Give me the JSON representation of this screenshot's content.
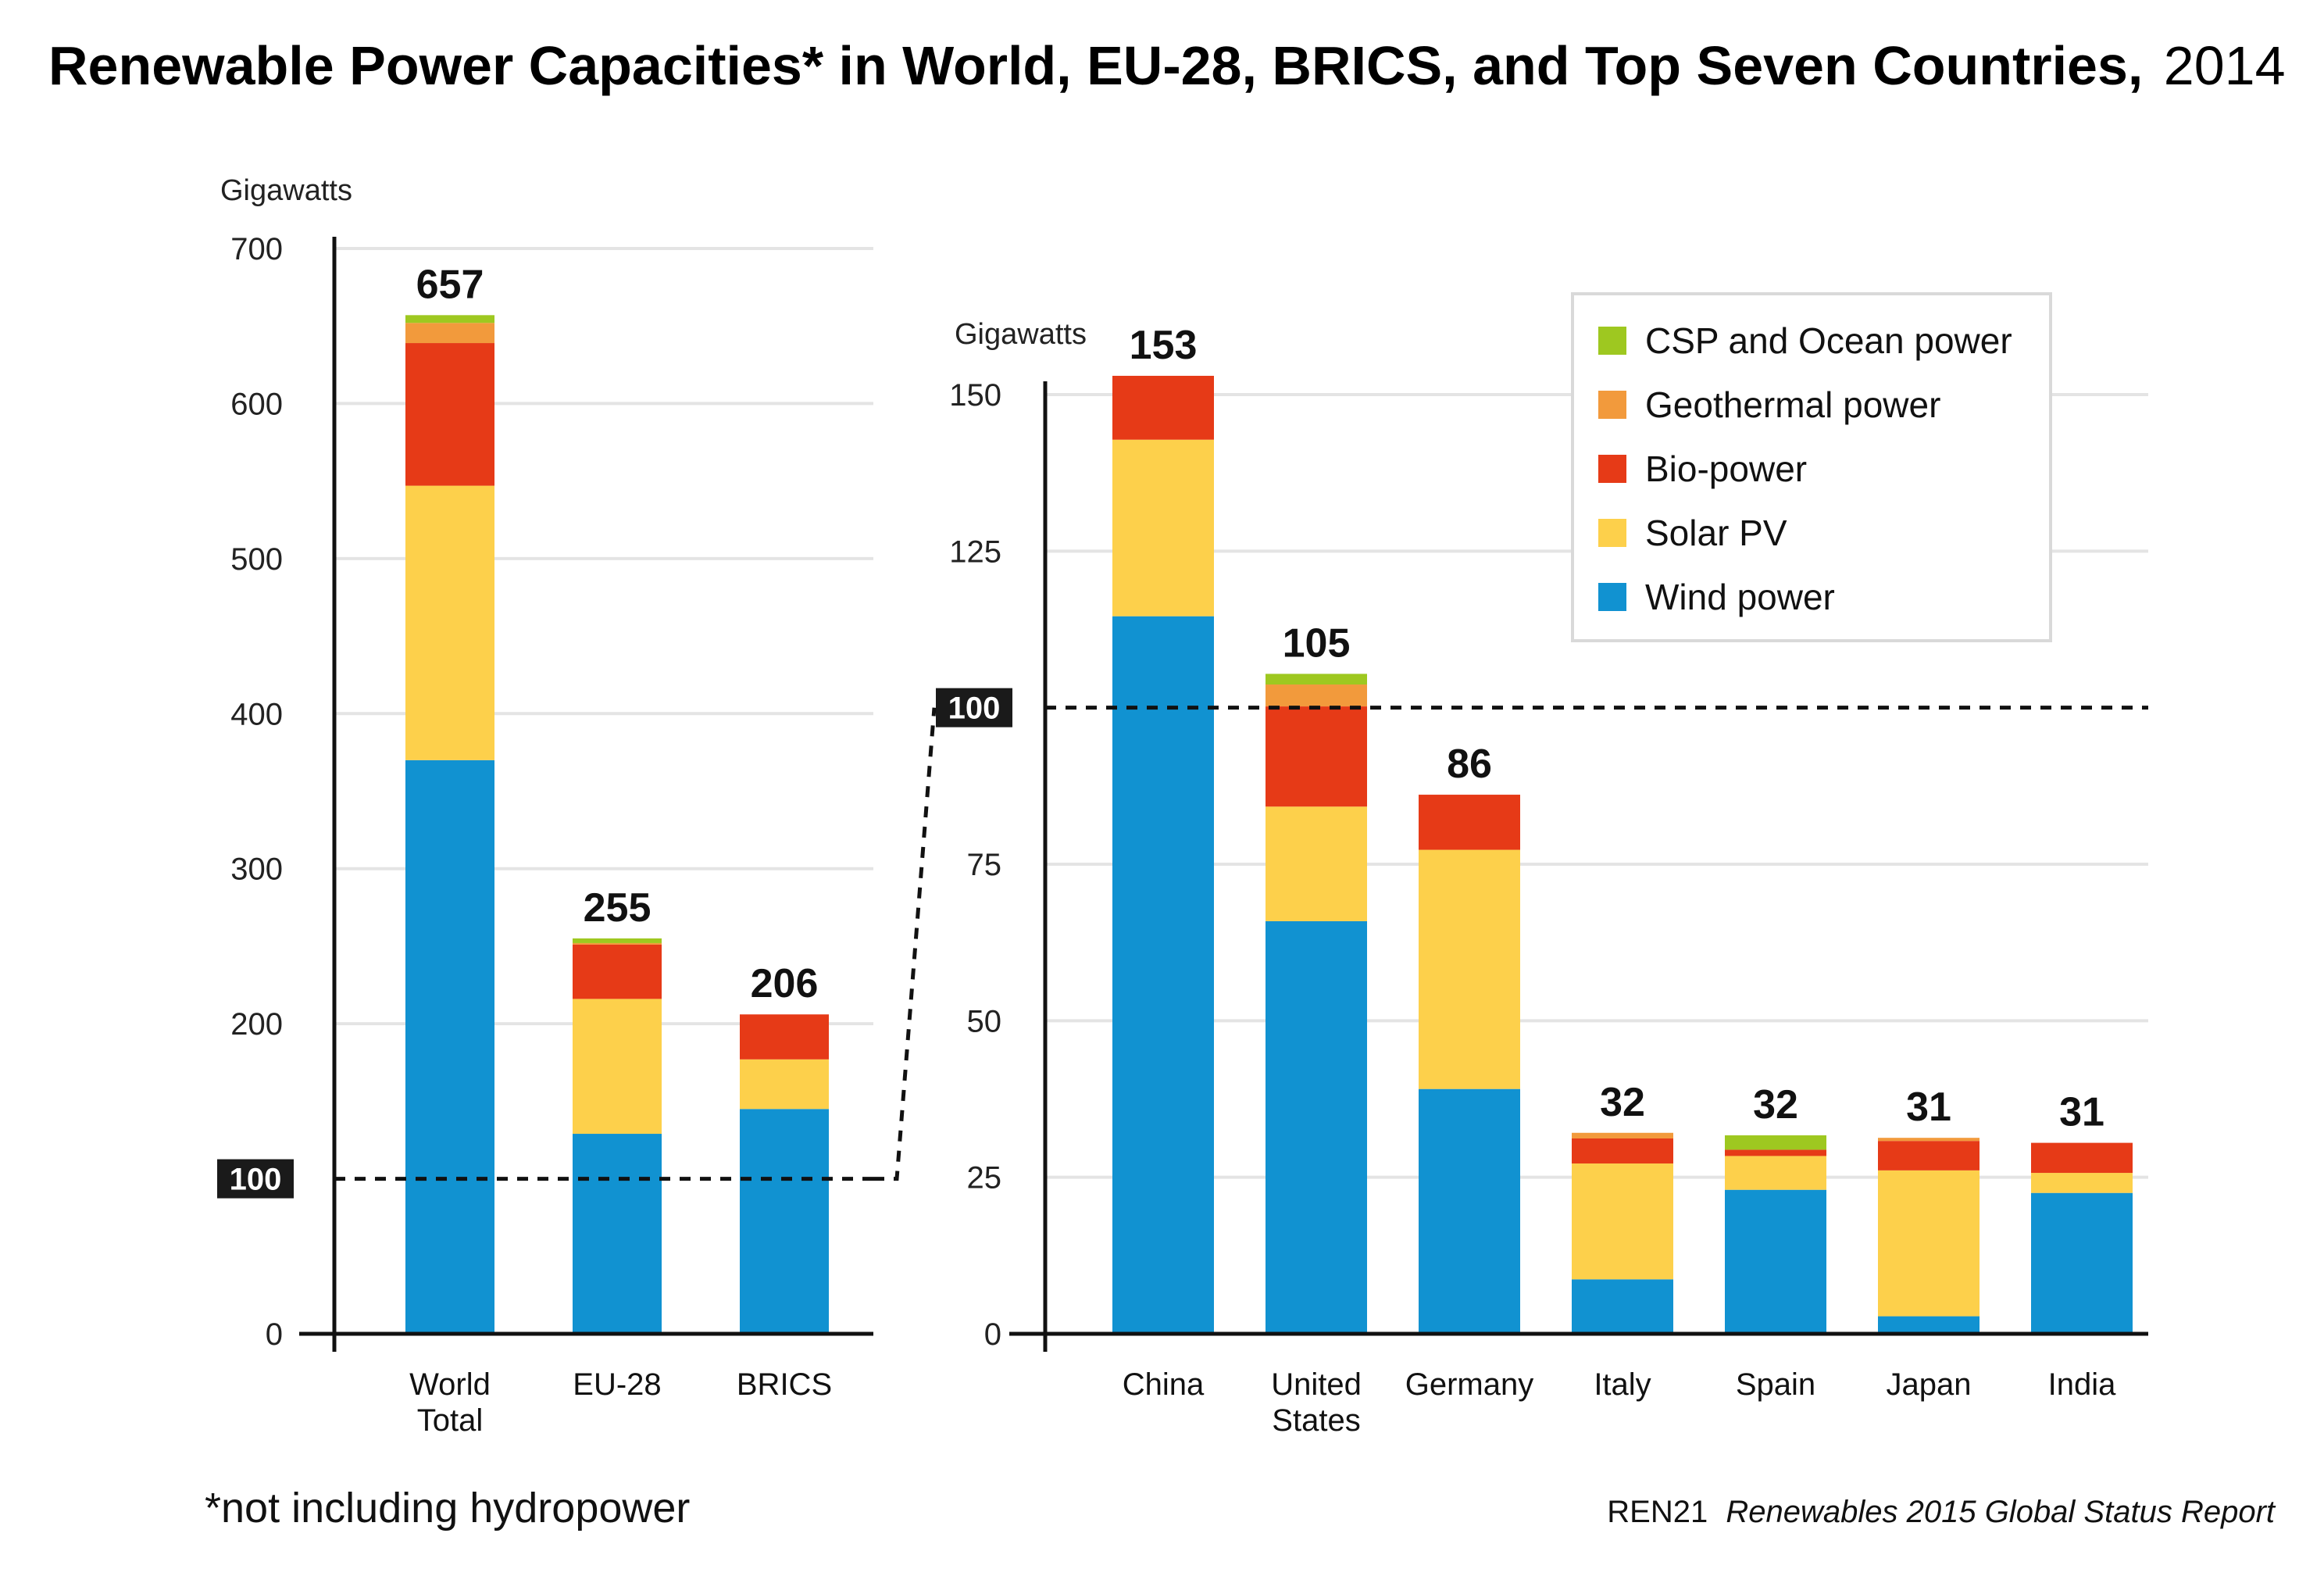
{
  "title": {
    "main": "Renewable Power Capacities* in World, EU-28, BRICS, and Top Seven Countries,",
    "year": "2014"
  },
  "footnote": "*not including hydropower",
  "source": {
    "org": "REN21",
    "report": "Renewables 2015 Global Status Report"
  },
  "colors": {
    "wind": "#1192d1",
    "solar": "#fdd04b",
    "bio": "#e63a17",
    "geo": "#f29a3c",
    "csp": "#9ec820",
    "axis": "#111111",
    "grid": "#e4e4e4",
    "marker_bg": "#1a1a1a"
  },
  "chart_data": [
    {
      "type": "bar",
      "stacked": true,
      "ylabel": "Gigawatts",
      "ylim": [
        0,
        700
      ],
      "yticks": [
        0,
        100,
        200,
        300,
        400,
        500,
        600,
        700
      ],
      "grid": true,
      "reference_line": {
        "value": 100,
        "label": "100",
        "style": "dashed"
      },
      "categories": [
        {
          "id": "world",
          "lines": [
            "World",
            "Total"
          ]
        },
        {
          "id": "eu",
          "lines": [
            "EU-28"
          ]
        },
        {
          "id": "brics",
          "lines": [
            "BRICS"
          ]
        }
      ],
      "totals": [
        "657",
        "255",
        "206"
      ],
      "series": [
        {
          "name": "Wind power",
          "key": "wind",
          "values": [
            370,
            129,
            145
          ]
        },
        {
          "name": "Solar PV",
          "key": "solar",
          "values": [
            177,
            87,
            32
          ]
        },
        {
          "name": "Bio-power",
          "key": "bio",
          "values": [
            92,
            35,
            29
          ]
        },
        {
          "name": "Geothermal power",
          "key": "geo",
          "values": [
            13,
            1,
            0
          ]
        },
        {
          "name": "CSP and Ocean power",
          "key": "csp",
          "values": [
            5,
            3,
            0
          ]
        }
      ]
    },
    {
      "type": "bar",
      "stacked": true,
      "ylabel": "Gigawatts",
      "ylim": [
        0,
        150
      ],
      "yticks": [
        0,
        25,
        50,
        75,
        100,
        125,
        150
      ],
      "grid": true,
      "reference_line": {
        "value": 100,
        "label": "100",
        "style": "dashed"
      },
      "legend_position": "top-right",
      "categories": [
        {
          "id": "china",
          "lines": [
            "China"
          ]
        },
        {
          "id": "us",
          "lines": [
            "United",
            "States"
          ]
        },
        {
          "id": "germany",
          "lines": [
            "Germany"
          ]
        },
        {
          "id": "italy",
          "lines": [
            "Italy"
          ]
        },
        {
          "id": "spain",
          "lines": [
            "Spain"
          ]
        },
        {
          "id": "japan",
          "lines": [
            "Japan"
          ]
        },
        {
          "id": "india",
          "lines": [
            "India"
          ]
        }
      ],
      "totals": [
        "153",
        "105",
        "86",
        "32",
        "32",
        "31",
        "31"
      ],
      "series": [
        {
          "name": "Wind power",
          "key": "wind",
          "values": [
            114.6,
            65.9,
            39.1,
            8.7,
            23.0,
            2.8,
            22.5
          ]
        },
        {
          "name": "Solar PV",
          "key": "solar",
          "values": [
            28.2,
            18.3,
            38.2,
            18.5,
            5.4,
            23.3,
            3.2
          ]
        },
        {
          "name": "Bio-power",
          "key": "bio",
          "values": [
            10.2,
            16.0,
            8.8,
            4.0,
            1.0,
            4.7,
            4.8
          ]
        },
        {
          "name": "Geothermal power",
          "key": "geo",
          "values": [
            0,
            3.5,
            0,
            0.9,
            0,
            0.5,
            0
          ]
        },
        {
          "name": "CSP and Ocean power",
          "key": "csp",
          "values": [
            0,
            1.7,
            0,
            0,
            2.3,
            0,
            0
          ]
        }
      ]
    }
  ],
  "legend": [
    {
      "label": "CSP and Ocean power",
      "key": "csp"
    },
    {
      "label": "Geothermal power",
      "key": "geo"
    },
    {
      "label": "Bio-power",
      "key": "bio"
    },
    {
      "label": "Solar PV",
      "key": "solar"
    },
    {
      "label": "Wind power",
      "key": "wind"
    }
  ]
}
